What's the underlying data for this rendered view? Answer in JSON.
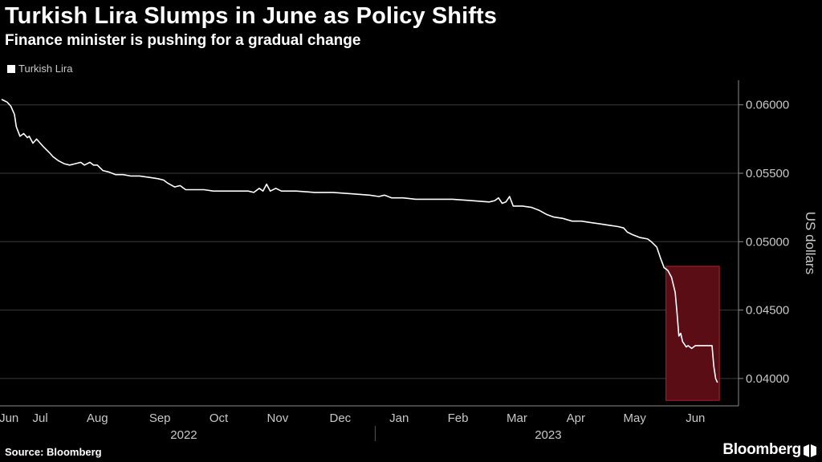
{
  "chart_data": {
    "type": "line",
    "title": "Turkish Lira Slumps in June as Policy Shifts",
    "subtitle": "Finance minister is pushing for a gradual change",
    "ylabel": "US dollars",
    "xlabel": "",
    "ylim": [
      0.038,
      0.0618
    ],
    "yticks": [
      0.04,
      0.045,
      0.05,
      0.055,
      0.06
    ],
    "ytick_labels": [
      "0.04000",
      "0.04500",
      "0.05000",
      "0.05500",
      "0.06000"
    ],
    "xlim": [
      0,
      393
    ],
    "xticks": [
      {
        "label": "Jun",
        "x": 4
      },
      {
        "label": "Jul",
        "x": 21
      },
      {
        "label": "Aug",
        "x": 52
      },
      {
        "label": "Sep",
        "x": 86
      },
      {
        "label": "Oct",
        "x": 118
      },
      {
        "label": "Nov",
        "x": 150
      },
      {
        "label": "Dec",
        "x": 184
      },
      {
        "label": "Jan",
        "x": 216
      },
      {
        "label": "Feb",
        "x": 248
      },
      {
        "label": "Mar",
        "x": 280
      },
      {
        "label": "Apr",
        "x": 312
      },
      {
        "label": "May",
        "x": 344
      },
      {
        "label": "Jun",
        "x": 377
      }
    ],
    "year_labels": [
      {
        "label": "2022",
        "x": 99
      },
      {
        "label": "2023",
        "x": 297
      }
    ],
    "grid": true,
    "legend": "top-left",
    "highlight": {
      "x_start": 361,
      "x_end": 390,
      "y_low": 0.0384,
      "y_high": 0.0482,
      "color": "#b3202f"
    },
    "series": [
      {
        "name": "Turkish Lira",
        "color": "#ffffff",
        "points": [
          [
            0,
            0.0604
          ],
          [
            3,
            0.0602
          ],
          [
            5,
            0.0599
          ],
          [
            7,
            0.0593
          ],
          [
            8,
            0.0584
          ],
          [
            10,
            0.0577
          ],
          [
            12,
            0.0579
          ],
          [
            14,
            0.0576
          ],
          [
            15,
            0.0577
          ],
          [
            17,
            0.0572
          ],
          [
            19,
            0.0575
          ],
          [
            21,
            0.0572
          ],
          [
            23,
            0.0569
          ],
          [
            26,
            0.0565
          ],
          [
            28,
            0.0562
          ],
          [
            31,
            0.0559
          ],
          [
            34,
            0.0557
          ],
          [
            37,
            0.0556
          ],
          [
            40,
            0.0557
          ],
          [
            43,
            0.0558
          ],
          [
            45,
            0.0556
          ],
          [
            48,
            0.0558
          ],
          [
            50,
            0.0556
          ],
          [
            52,
            0.0556
          ],
          [
            55,
            0.0552
          ],
          [
            58,
            0.0551
          ],
          [
            62,
            0.0549
          ],
          [
            66,
            0.0549
          ],
          [
            70,
            0.0548
          ],
          [
            75,
            0.0548
          ],
          [
            80,
            0.0547
          ],
          [
            85,
            0.0546
          ],
          [
            88,
            0.0545
          ],
          [
            90,
            0.0543
          ],
          [
            94,
            0.054
          ],
          [
            97,
            0.0541
          ],
          [
            100,
            0.0538
          ],
          [
            105,
            0.0538
          ],
          [
            110,
            0.0538
          ],
          [
            115,
            0.0537
          ],
          [
            120,
            0.0537
          ],
          [
            125,
            0.0537
          ],
          [
            130,
            0.0537
          ],
          [
            134,
            0.0537
          ],
          [
            137,
            0.0536
          ],
          [
            140,
            0.0539
          ],
          [
            142,
            0.0537
          ],
          [
            144,
            0.0542
          ],
          [
            146,
            0.0537
          ],
          [
            149,
            0.0539
          ],
          [
            152,
            0.0537
          ],
          [
            160,
            0.0537
          ],
          [
            170,
            0.0536
          ],
          [
            180,
            0.0536
          ],
          [
            190,
            0.0535
          ],
          [
            200,
            0.0534
          ],
          [
            205,
            0.0533
          ],
          [
            208,
            0.0534
          ],
          [
            212,
            0.0532
          ],
          [
            218,
            0.0532
          ],
          [
            225,
            0.0531
          ],
          [
            235,
            0.0531
          ],
          [
            245,
            0.0531
          ],
          [
            255,
            0.053
          ],
          [
            265,
            0.0529
          ],
          [
            268,
            0.053
          ],
          [
            270,
            0.0532
          ],
          [
            272,
            0.0528
          ],
          [
            274,
            0.0529
          ],
          [
            276,
            0.0533
          ],
          [
            278,
            0.0526
          ],
          [
            283,
            0.0526
          ],
          [
            288,
            0.0525
          ],
          [
            292,
            0.0523
          ],
          [
            296,
            0.052
          ],
          [
            300,
            0.0518
          ],
          [
            305,
            0.0517
          ],
          [
            310,
            0.0515
          ],
          [
            315,
            0.0515
          ],
          [
            320,
            0.0514
          ],
          [
            325,
            0.0513
          ],
          [
            330,
            0.0512
          ],
          [
            335,
            0.0511
          ],
          [
            338,
            0.051
          ],
          [
            340,
            0.0507
          ],
          [
            343,
            0.0505
          ],
          [
            347,
            0.0503
          ],
          [
            351,
            0.0502
          ],
          [
            353,
            0.05
          ],
          [
            356,
            0.0496
          ],
          [
            358,
            0.0488
          ],
          [
            360,
            0.0481
          ],
          [
            362,
            0.0479
          ],
          [
            364,
            0.0474
          ],
          [
            366,
            0.0463
          ],
          [
            367,
            0.0448
          ],
          [
            368,
            0.0431
          ],
          [
            369,
            0.0433
          ],
          [
            370,
            0.0427
          ],
          [
            372,
            0.0423
          ],
          [
            373,
            0.0424
          ],
          [
            375,
            0.0422
          ],
          [
            377,
            0.0424
          ],
          [
            380,
            0.0424
          ],
          [
            383,
            0.0424
          ],
          [
            386,
            0.0424
          ],
          [
            387,
            0.0409
          ],
          [
            388,
            0.04
          ],
          [
            389,
            0.0397
          ]
        ]
      }
    ]
  },
  "source": "Source: Bloomberg",
  "brand": "Bloomberg",
  "colors": {
    "background": "#000000",
    "line": "#ffffff",
    "grid": "#3a3a3a",
    "axis": "#8a8a8a",
    "text": "#c8c8c8",
    "highlight_fill": "#5a0d15",
    "highlight_stroke": "#b3202f"
  }
}
